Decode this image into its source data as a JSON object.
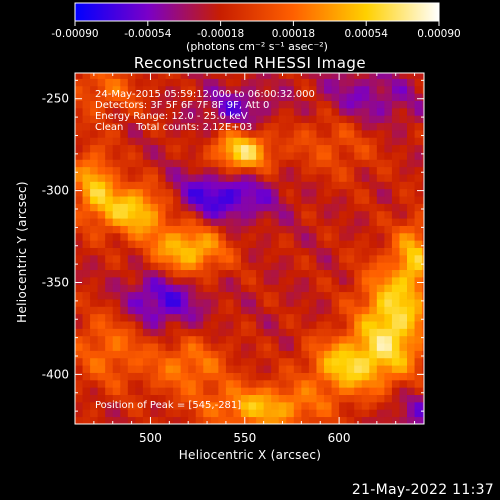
{
  "chart_data": {
    "type": "heatmap",
    "title": "Reconstructed RHESSI Image",
    "xlabel": "Heliocentric X (arcsec)",
    "ylabel": "Heliocentric Y (arcsec)",
    "xlim": [
      460,
      645
    ],
    "ylim": [
      -427,
      -236
    ],
    "x_ticks": [
      500,
      550,
      600
    ],
    "x_tick_labels": [
      "500",
      "550",
      "600"
    ],
    "y_ticks": [
      -250,
      -300,
      -350,
      -400
    ],
    "y_tick_labels": [
      "-250",
      "-300",
      "-350",
      "-400"
    ],
    "annotations": [
      "24-May-2015 05:59:12.000 to 06:00:32.000",
      "Detectors: 3F 5F 6F 7F 8F 9F, Att 0",
      "Energy Range: 12.0 - 25.0 keV",
      "Clean    Total counts: 2.12E+03"
    ],
    "peak_label": "Position of Peak = [545,-281]",
    "peak": [
      545,
      -281
    ],
    "colorbar": {
      "min": -0.0009,
      "max": 0.0009,
      "ticks": [
        -0.0009,
        -0.00054,
        -0.00018,
        0.00018,
        0.00054,
        0.0009
      ],
      "tick_labels": [
        "-0.00090",
        "-0.00054",
        "-0.00018",
        "0.00018",
        "0.00054",
        "0.00090"
      ],
      "unit_label": "(photons cm⁻² s⁻¹ asec⁻²)",
      "colors": [
        "#0000ff",
        "#7a00c8",
        "#c81e00",
        "#ff6000",
        "#ffd000",
        "#ffffff"
      ]
    },
    "grid_step_arcsec": 4,
    "sources": [
      {
        "x": 548,
        "y": -279,
        "amp": 0.00085,
        "sx": 11,
        "sy": 8
      },
      {
        "x": 492,
        "y": -310,
        "amp": 0.00078,
        "sx": 13,
        "sy": 10
      },
      {
        "x": 520,
        "y": -332,
        "amp": 0.00074,
        "sx": 14,
        "sy": 10
      },
      {
        "x": 470,
        "y": -296,
        "amp": 0.0006,
        "sx": 8,
        "sy": 14
      },
      {
        "x": 560,
        "y": -418,
        "amp": 0.00065,
        "sx": 22,
        "sy": 9
      },
      {
        "x": 628,
        "y": -372,
        "amp": 0.00085,
        "sx": 13,
        "sy": 22
      },
      {
        "x": 603,
        "y": -395,
        "amp": 0.0007,
        "sx": 14,
        "sy": 11
      },
      {
        "x": 640,
        "y": -335,
        "amp": 0.00055,
        "sx": 7,
        "sy": 14
      },
      {
        "x": 598,
        "y": -268,
        "amp": 0.00035,
        "sx": 18,
        "sy": 16
      },
      {
        "x": 476,
        "y": -245,
        "amp": 0.00035,
        "sx": 14,
        "sy": 10
      },
      {
        "x": 520,
        "y": -395,
        "amp": 0.00045,
        "sx": 15,
        "sy": 11
      },
      {
        "x": 478,
        "y": -385,
        "amp": 0.0004,
        "sx": 14,
        "sy": 16
      },
      {
        "x": 537,
        "y": -303,
        "amp": -0.00052,
        "sx": 20,
        "sy": 10
      },
      {
        "x": 505,
        "y": -360,
        "amp": -0.00048,
        "sx": 15,
        "sy": 11
      },
      {
        "x": 610,
        "y": -252,
        "amp": -0.00042,
        "sx": 20,
        "sy": 12
      },
      {
        "x": 545,
        "y": -255,
        "amp": -0.00035,
        "sx": 14,
        "sy": 8
      },
      {
        "x": 640,
        "y": -420,
        "amp": -0.0003,
        "sx": 12,
        "sy": 10
      }
    ]
  },
  "footer": {
    "date": "21-May-2022 11:37"
  }
}
